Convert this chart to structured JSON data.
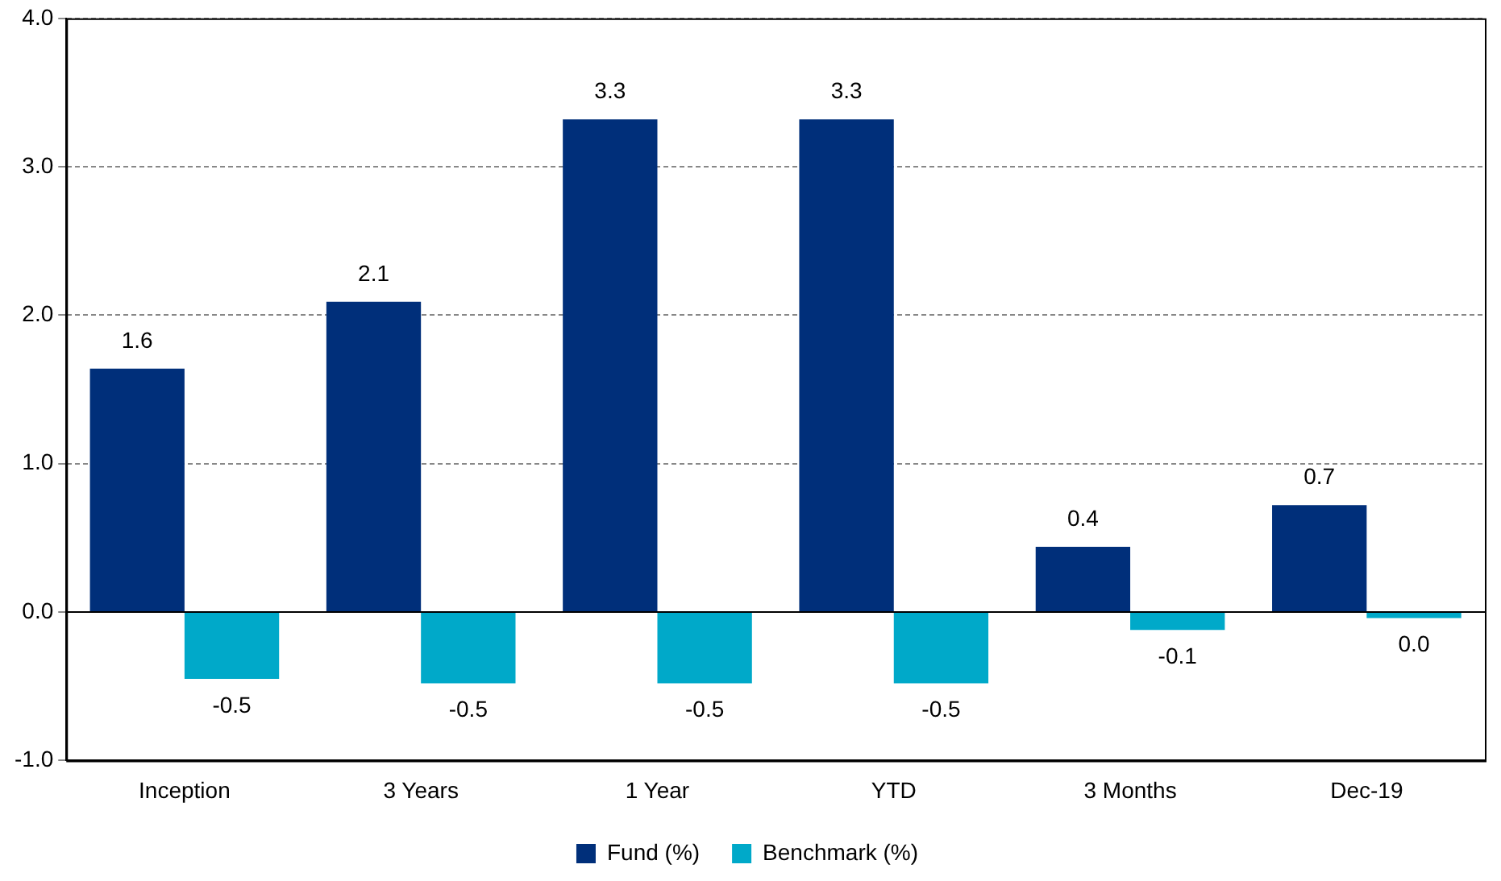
{
  "chart_data": {
    "type": "bar",
    "categories": [
      "Inception",
      "3 Years",
      "1 Year",
      "YTD",
      "3 Months",
      "Dec-19"
    ],
    "series": [
      {
        "name": "Fund (%)",
        "color": "#002f7a",
        "values": [
          1.64,
          2.09,
          3.32,
          3.32,
          0.44,
          0.72
        ],
        "value_labels": [
          "1.6",
          "2.1",
          "3.3",
          "3.3",
          "0.4",
          "0.7"
        ]
      },
      {
        "name": "Benchmark (%)",
        "color": "#00a9c9",
        "values": [
          -0.45,
          -0.48,
          -0.48,
          -0.48,
          -0.12,
          -0.04
        ],
        "value_labels": [
          "-0.5",
          "-0.5",
          "-0.5",
          "-0.5",
          "-0.1",
          "0.0"
        ]
      }
    ],
    "ylim": [
      -1,
      4
    ],
    "yticks": [
      {
        "value": -1,
        "label": "-1.0"
      },
      {
        "value": 0,
        "label": "0.0"
      },
      {
        "value": 1,
        "label": "1.0"
      },
      {
        "value": 2,
        "label": "2.0"
      },
      {
        "value": 3,
        "label": "3.0"
      },
      {
        "value": 4,
        "label": "4.0"
      }
    ],
    "grid": "y",
    "legend": "bottom"
  }
}
